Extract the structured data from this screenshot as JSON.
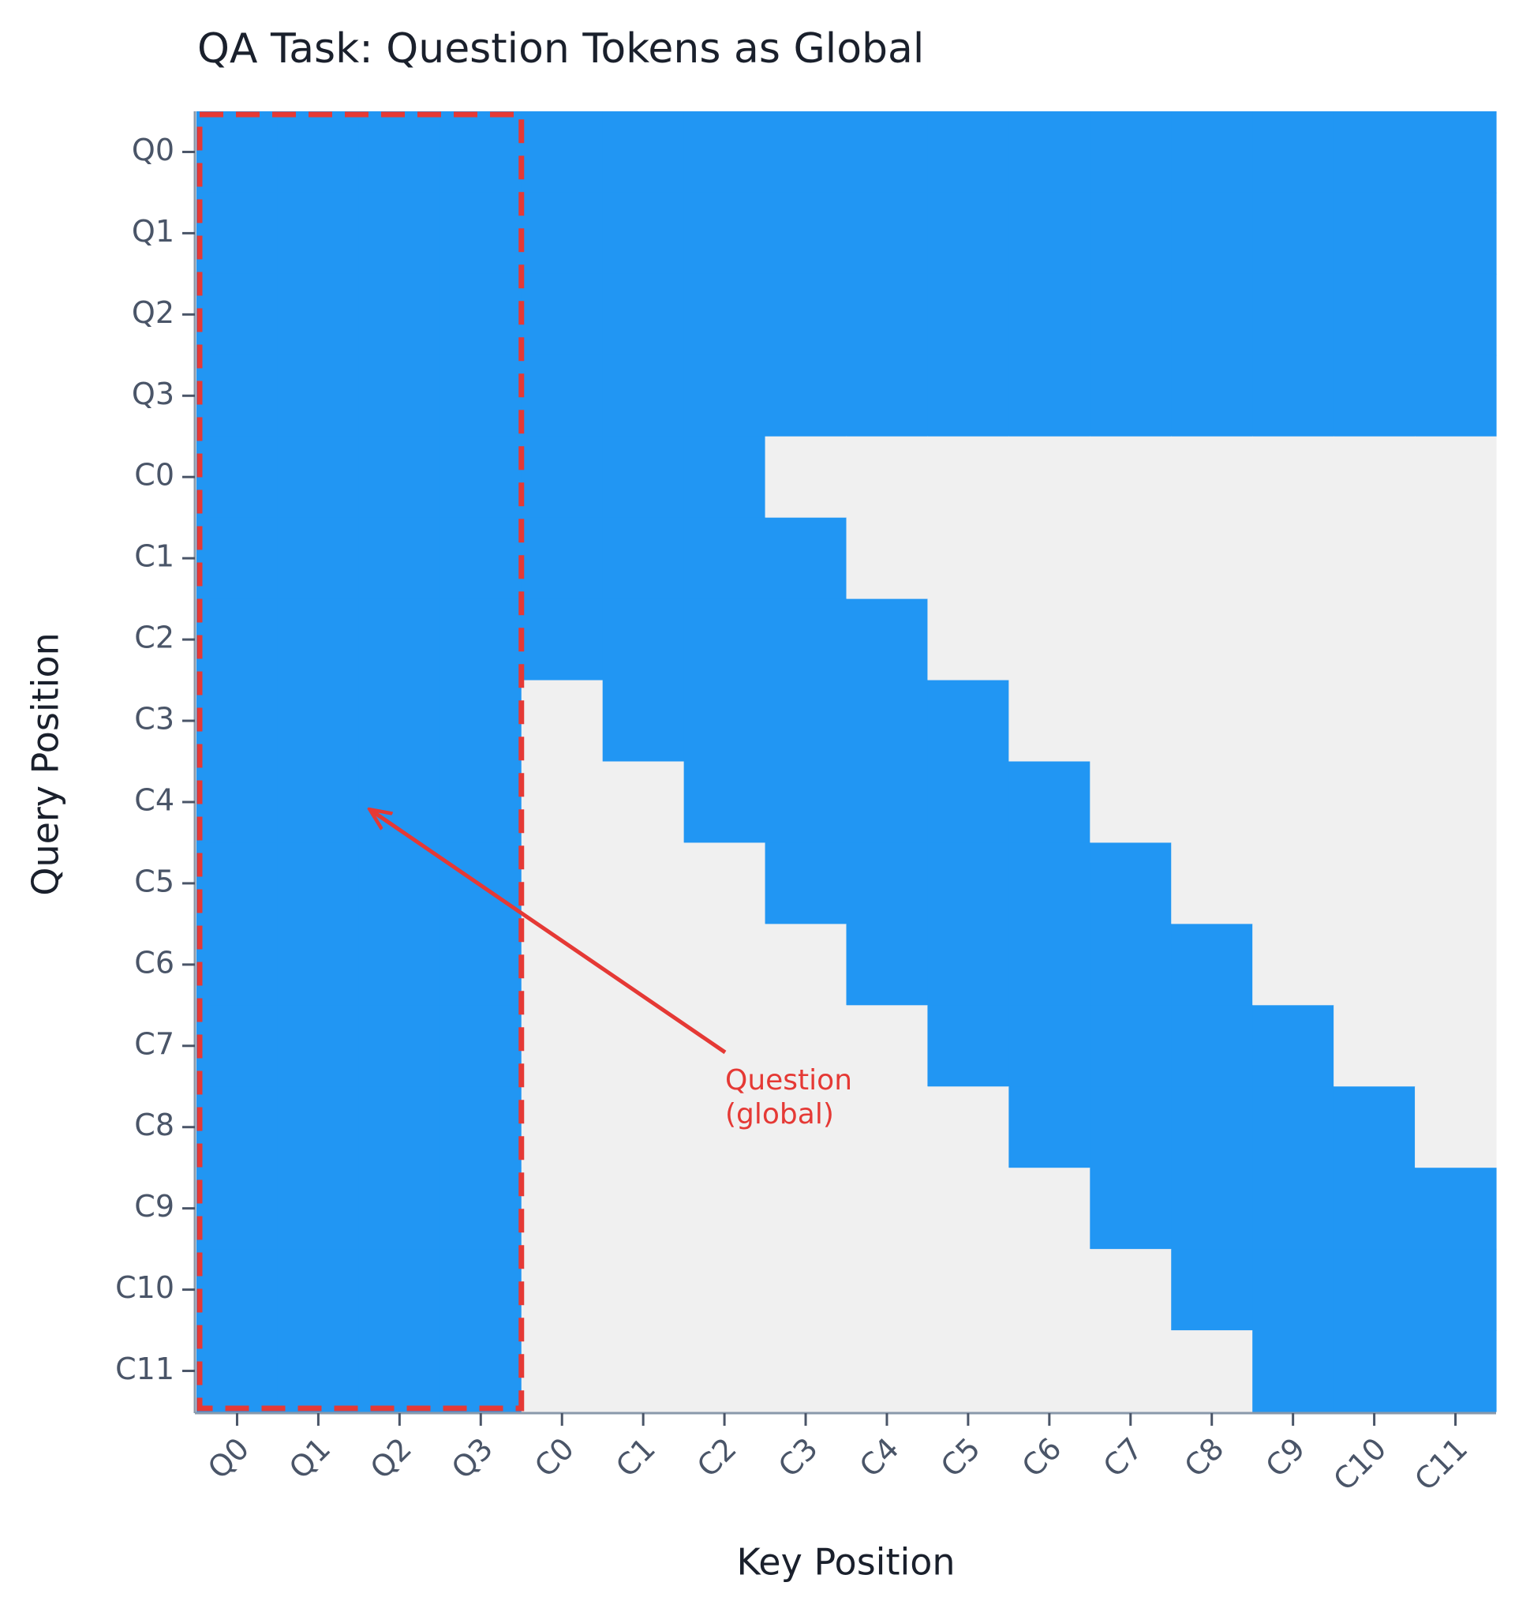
{
  "chart_data": {
    "type": "heatmap",
    "title": "QA Task: Question Tokens as Global",
    "x_label": "Key Position",
    "y_label": "Query Position",
    "x_categories": [
      "Q0",
      "Q1",
      "Q2",
      "Q3",
      "C0",
      "C1",
      "C2",
      "C3",
      "C4",
      "C5",
      "C6",
      "C7",
      "C8",
      "C9",
      "C10",
      "C11"
    ],
    "y_categories": [
      "Q0",
      "Q1",
      "Q2",
      "Q3",
      "C0",
      "C1",
      "C2",
      "C3",
      "C4",
      "C5",
      "C6",
      "C7",
      "C8",
      "C9",
      "C10",
      "C11"
    ],
    "cmap": [
      "#f0f0f0",
      "#2196f3"
    ],
    "values": [
      [
        1,
        1,
        1,
        1,
        1,
        1,
        1,
        1,
        1,
        1,
        1,
        1,
        1,
        1,
        1,
        1
      ],
      [
        1,
        1,
        1,
        1,
        1,
        1,
        1,
        1,
        1,
        1,
        1,
        1,
        1,
        1,
        1,
        1
      ],
      [
        1,
        1,
        1,
        1,
        1,
        1,
        1,
        1,
        1,
        1,
        1,
        1,
        1,
        1,
        1,
        1
      ],
      [
        1,
        1,
        1,
        1,
        1,
        1,
        1,
        1,
        1,
        1,
        1,
        1,
        1,
        1,
        1,
        1
      ],
      [
        1,
        1,
        1,
        1,
        1,
        1,
        1,
        0,
        0,
        0,
        0,
        0,
        0,
        0,
        0,
        0
      ],
      [
        1,
        1,
        1,
        1,
        1,
        1,
        1,
        1,
        0,
        0,
        0,
        0,
        0,
        0,
        0,
        0
      ],
      [
        1,
        1,
        1,
        1,
        1,
        1,
        1,
        1,
        1,
        0,
        0,
        0,
        0,
        0,
        0,
        0
      ],
      [
        1,
        1,
        1,
        1,
        0,
        1,
        1,
        1,
        1,
        1,
        0,
        0,
        0,
        0,
        0,
        0
      ],
      [
        1,
        1,
        1,
        1,
        0,
        0,
        1,
        1,
        1,
        1,
        1,
        0,
        0,
        0,
        0,
        0
      ],
      [
        1,
        1,
        1,
        1,
        0,
        0,
        0,
        1,
        1,
        1,
        1,
        1,
        0,
        0,
        0,
        0
      ],
      [
        1,
        1,
        1,
        1,
        0,
        0,
        0,
        0,
        1,
        1,
        1,
        1,
        1,
        0,
        0,
        0
      ],
      [
        1,
        1,
        1,
        1,
        0,
        0,
        0,
        0,
        0,
        1,
        1,
        1,
        1,
        1,
        0,
        0
      ],
      [
        1,
        1,
        1,
        1,
        0,
        0,
        0,
        0,
        0,
        0,
        1,
        1,
        1,
        1,
        1,
        0
      ],
      [
        1,
        1,
        1,
        1,
        0,
        0,
        0,
        0,
        0,
        0,
        0,
        1,
        1,
        1,
        1,
        1
      ],
      [
        1,
        1,
        1,
        1,
        0,
        0,
        0,
        0,
        0,
        0,
        0,
        0,
        1,
        1,
        1,
        1
      ],
      [
        1,
        1,
        1,
        1,
        0,
        0,
        0,
        0,
        0,
        0,
        0,
        0,
        0,
        1,
        1,
        1
      ]
    ],
    "annotation": {
      "lines": [
        "Question",
        "(global)"
      ],
      "color": "#e53935"
    }
  }
}
